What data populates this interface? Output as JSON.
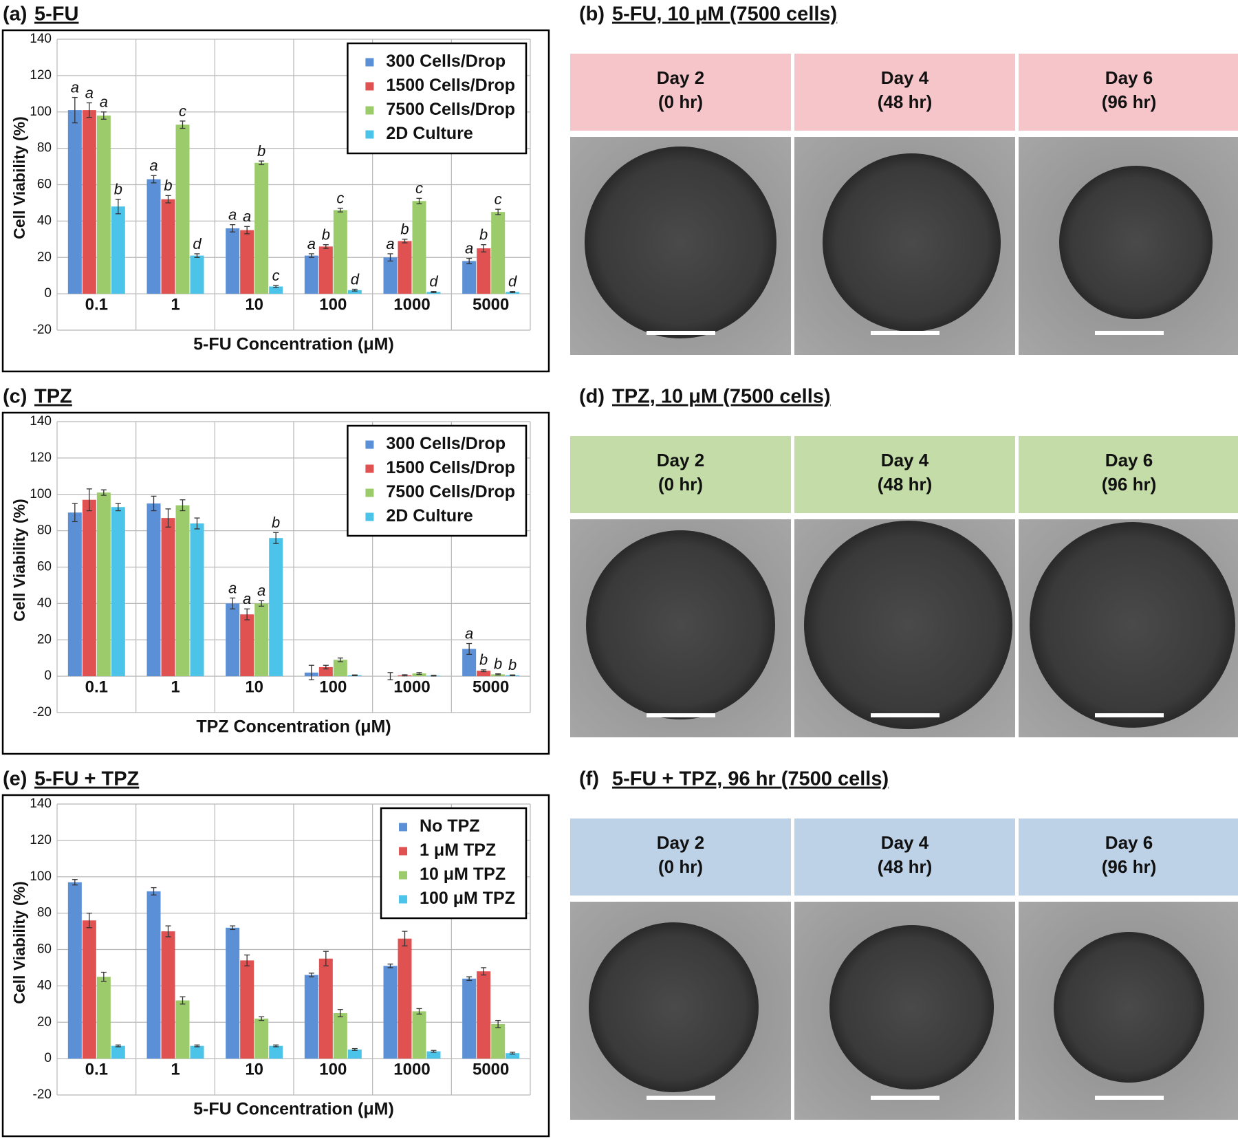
{
  "chart_data": [
    {
      "type": "bar",
      "panel_label": "(a)",
      "title": "5-FU",
      "x_label": "5-FU Concentration (μM)",
      "y_label": "Cell Viability (%)",
      "categories": [
        "0.1",
        "1",
        "10",
        "100",
        "1000",
        "5000"
      ],
      "ylim": [
        -20,
        140
      ],
      "yticks": [
        -20,
        0,
        20,
        40,
        60,
        80,
        100,
        120,
        140
      ],
      "grid": true,
      "legend": "upper right",
      "series": [
        {
          "name": "300 Cells/Drop",
          "color": "#5b8fd6",
          "values": [
            101,
            63,
            36,
            21,
            20,
            18
          ],
          "errors": [
            7,
            2,
            2,
            1,
            2,
            1.5
          ],
          "annotations": [
            "a",
            "a",
            "a",
            "a",
            "a",
            "a"
          ]
        },
        {
          "name": "1500 Cells/Drop",
          "color": "#e05252",
          "values": [
            101,
            52,
            35,
            26,
            29,
            25
          ],
          "errors": [
            4,
            2,
            2,
            1,
            1,
            2
          ],
          "annotations": [
            "a",
            "b",
            "a",
            "b",
            "b",
            "b"
          ]
        },
        {
          "name": "7500 Cells/Drop",
          "color": "#9ccb6b",
          "values": [
            98,
            93,
            72,
            46,
            51,
            45
          ],
          "errors": [
            2,
            2,
            1,
            1,
            1.5,
            1.5
          ],
          "annotations": [
            "a",
            "c",
            "b",
            "c",
            "c",
            "c"
          ]
        },
        {
          "name": "2D Culture",
          "color": "#4cc3e8",
          "values": [
            48,
            21,
            4,
            2,
            1,
            1
          ],
          "errors": [
            4,
            1,
            0.5,
            0.5,
            0.3,
            0.3
          ],
          "annotations": [
            "b",
            "d",
            "c",
            "d",
            "d",
            "d"
          ]
        }
      ]
    },
    {
      "type": "bar",
      "panel_label": "(c)",
      "title": "TPZ",
      "x_label": "TPZ Concentration (μM)",
      "y_label": "Cell Viability (%)",
      "categories": [
        "0.1",
        "1",
        "10",
        "100",
        "1000",
        "5000"
      ],
      "ylim": [
        -20,
        140
      ],
      "yticks": [
        -20,
        0,
        20,
        40,
        60,
        80,
        100,
        120,
        140
      ],
      "grid": true,
      "legend": "upper right",
      "series": [
        {
          "name": "300 Cells/Drop",
          "color": "#5b8fd6",
          "values": [
            90,
            95,
            40,
            2,
            0,
            15
          ],
          "errors": [
            5,
            4,
            3,
            4,
            2,
            3
          ],
          "annotations": [
            null,
            null,
            "a",
            null,
            null,
            "a"
          ]
        },
        {
          "name": "1500 Cells/Drop",
          "color": "#e05252",
          "values": [
            97,
            87,
            34,
            5,
            0.5,
            3
          ],
          "errors": [
            6,
            5,
            3,
            1,
            0.3,
            0.5
          ],
          "annotations": [
            null,
            null,
            "a",
            null,
            null,
            "b"
          ]
        },
        {
          "name": "7500 Cells/Drop",
          "color": "#9ccb6b",
          "values": [
            101,
            94,
            40,
            9,
            1.5,
            1
          ],
          "errors": [
            1.5,
            3,
            1.5,
            1,
            0.5,
            0.3
          ],
          "annotations": [
            null,
            null,
            "a",
            null,
            null,
            "b"
          ]
        },
        {
          "name": "2D Culture",
          "color": "#4cc3e8",
          "values": [
            93,
            84,
            76,
            0.5,
            0.3,
            0.5
          ],
          "errors": [
            2,
            3,
            3,
            0.2,
            0.2,
            0.2
          ],
          "annotations": [
            null,
            null,
            "b",
            null,
            null,
            "b"
          ]
        }
      ]
    },
    {
      "type": "bar",
      "panel_label": "(e)",
      "title": "5-FU + TPZ",
      "x_label": "5-FU Concentration (μM)",
      "y_label": "Cell Viability (%)",
      "categories": [
        "0.1",
        "1",
        "10",
        "100",
        "1000",
        "5000"
      ],
      "ylim": [
        -20,
        140
      ],
      "yticks": [
        -20,
        0,
        20,
        40,
        60,
        80,
        100,
        120,
        140
      ],
      "grid": true,
      "legend": "upper right",
      "series": [
        {
          "name": "No TPZ",
          "color": "#5b8fd6",
          "values": [
            97,
            92,
            72,
            46,
            51,
            44
          ],
          "errors": [
            1.5,
            2,
            1,
            1,
            1,
            1
          ]
        },
        {
          "name": "1 μM TPZ",
          "color": "#e05252",
          "values": [
            76,
            70,
            54,
            55,
            66,
            48
          ],
          "errors": [
            4,
            3,
            3,
            4,
            4,
            2
          ]
        },
        {
          "name": "10 μM TPZ",
          "color": "#9ccb6b",
          "values": [
            45,
            32,
            22,
            25,
            26,
            19
          ],
          "errors": [
            2.5,
            2,
            1,
            2,
            1.5,
            2
          ]
        },
        {
          "name": "100 μM TPZ",
          "color": "#4cc3e8",
          "values": [
            7,
            7,
            7,
            5,
            4,
            3
          ],
          "errors": [
            0.5,
            0.5,
            0.5,
            0.5,
            0.5,
            0.5
          ]
        }
      ]
    }
  ],
  "image_panels": [
    {
      "panel_label": "(b)",
      "title": "5-FU, 10 μM (7500 cells)",
      "header_color": "#f6c5c9",
      "columns": [
        {
          "day": "Day 2",
          "time": "(0 hr)"
        },
        {
          "day": "Day 4",
          "time": "(48 hr)"
        },
        {
          "day": "Day 6",
          "time": "(96 hr)"
        }
      ]
    },
    {
      "panel_label": "(d)",
      "title": "TPZ, 10 μM (7500 cells)",
      "header_color": "#c4dda8",
      "columns": [
        {
          "day": "Day 2",
          "time": "(0 hr)"
        },
        {
          "day": "Day 4",
          "time": "(48 hr)"
        },
        {
          "day": "Day 6",
          "time": "(96 hr)"
        }
      ]
    },
    {
      "panel_label": "(f)",
      "title": "5-FU + TPZ, 96 hr (7500 cells)",
      "header_color": "#bdd1e7",
      "columns": [
        {
          "day": "Day 2",
          "time": "(0 hr)"
        },
        {
          "day": "Day 4",
          "time": "(48 hr)"
        },
        {
          "day": "Day 6",
          "time": "(96 hr)"
        }
      ]
    }
  ]
}
